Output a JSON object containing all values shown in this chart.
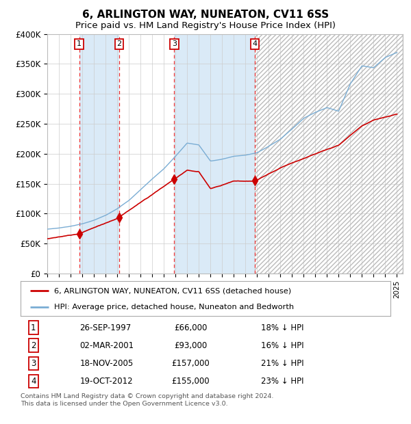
{
  "title": "6, ARLINGTON WAY, NUNEATON, CV11 6SS",
  "subtitle": "Price paid vs. HM Land Registry's House Price Index (HPI)",
  "ylim": [
    0,
    400000
  ],
  "yticks": [
    0,
    50000,
    100000,
    150000,
    200000,
    250000,
    300000,
    350000,
    400000
  ],
  "ytick_labels": [
    "£0",
    "£50K",
    "£100K",
    "£150K",
    "£200K",
    "£250K",
    "£300K",
    "£350K",
    "£400K"
  ],
  "xlim_start": 1995.0,
  "xlim_end": 2025.5,
  "sale_dates": [
    1997.74,
    2001.17,
    2005.89,
    2012.8
  ],
  "sale_prices": [
    66000,
    93000,
    157000,
    155000
  ],
  "sale_labels": [
    "1",
    "2",
    "3",
    "4"
  ],
  "red_line_color": "#cc0000",
  "blue_line_color": "#7aadd4",
  "shade_color": "#daeaf7",
  "background_color": "#ffffff",
  "grid_color": "#cccccc",
  "vline_color": "#ee3333",
  "legend_red_label": "6, ARLINGTON WAY, NUNEATON, CV11 6SS (detached house)",
  "legend_blue_label": "HPI: Average price, detached house, Nuneaton and Bedworth",
  "table_rows": [
    {
      "num": "1",
      "date": "26-SEP-1997",
      "price": "£66,000",
      "note": "18% ↓ HPI"
    },
    {
      "num": "2",
      "date": "02-MAR-2001",
      "price": "£93,000",
      "note": "16% ↓ HPI"
    },
    {
      "num": "3",
      "date": "18-NOV-2005",
      "price": "£157,000",
      "note": "21% ↓ HPI"
    },
    {
      "num": "4",
      "date": "19-OCT-2012",
      "price": "£155,000",
      "note": "23% ↓ HPI"
    }
  ],
  "footer": "Contains HM Land Registry data © Crown copyright and database right 2024.\nThis data is licensed under the Open Government Licence v3.0.",
  "title_fontsize": 11,
  "subtitle_fontsize": 9.5
}
